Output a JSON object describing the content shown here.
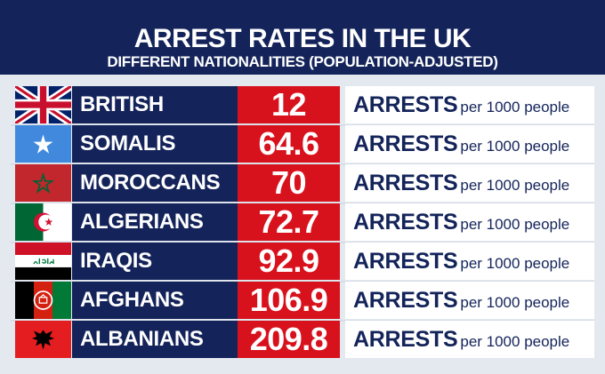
{
  "header": {
    "title": "ARREST RATES IN THE UK",
    "subtitle": "DIFFERENT NATIONALITIES (POPULATION-ADJUSTED)"
  },
  "chart_data": {
    "type": "table",
    "title": "ARREST RATES IN THE UK",
    "subtitle": "DIFFERENT NATIONALITIES (POPULATION-ADJUSTED)",
    "rows": [
      {
        "label": "BRITISH",
        "value": "12",
        "flag": "uk-flag-icon",
        "unit_main": "ARRESTS",
        "unit_sub": "per 1000 people"
      },
      {
        "label": "SOMALIS",
        "value": "64.6",
        "flag": "somalia-flag-icon",
        "unit_main": "ARRESTS",
        "unit_sub": "per 1000 people"
      },
      {
        "label": "MOROCCANS",
        "value": "70",
        "flag": "morocco-flag-icon",
        "unit_main": "ARRESTS",
        "unit_sub": "per 1000 people"
      },
      {
        "label": "ALGERIANS",
        "value": "72.7",
        "flag": "algeria-flag-icon",
        "unit_main": "ARRESTS",
        "unit_sub": "per 1000 people"
      },
      {
        "label": "IRAQIS",
        "value": "92.9",
        "flag": "iraq-flag-icon",
        "unit_main": "ARRESTS",
        "unit_sub": "per 1000 people"
      },
      {
        "label": "AFGHANS",
        "value": "106.9",
        "flag": "afghanistan-flag-icon",
        "unit_main": "ARRESTS",
        "unit_sub": "per 1000 people"
      },
      {
        "label": "ALBANIANS",
        "value": "209.8",
        "flag": "albania-flag-icon",
        "unit_main": "ARRESTS",
        "unit_sub": "per 1000 people"
      }
    ]
  },
  "colors": {
    "navy": "#14245a",
    "red": "#d8121d",
    "background": "#e4e9ef"
  }
}
